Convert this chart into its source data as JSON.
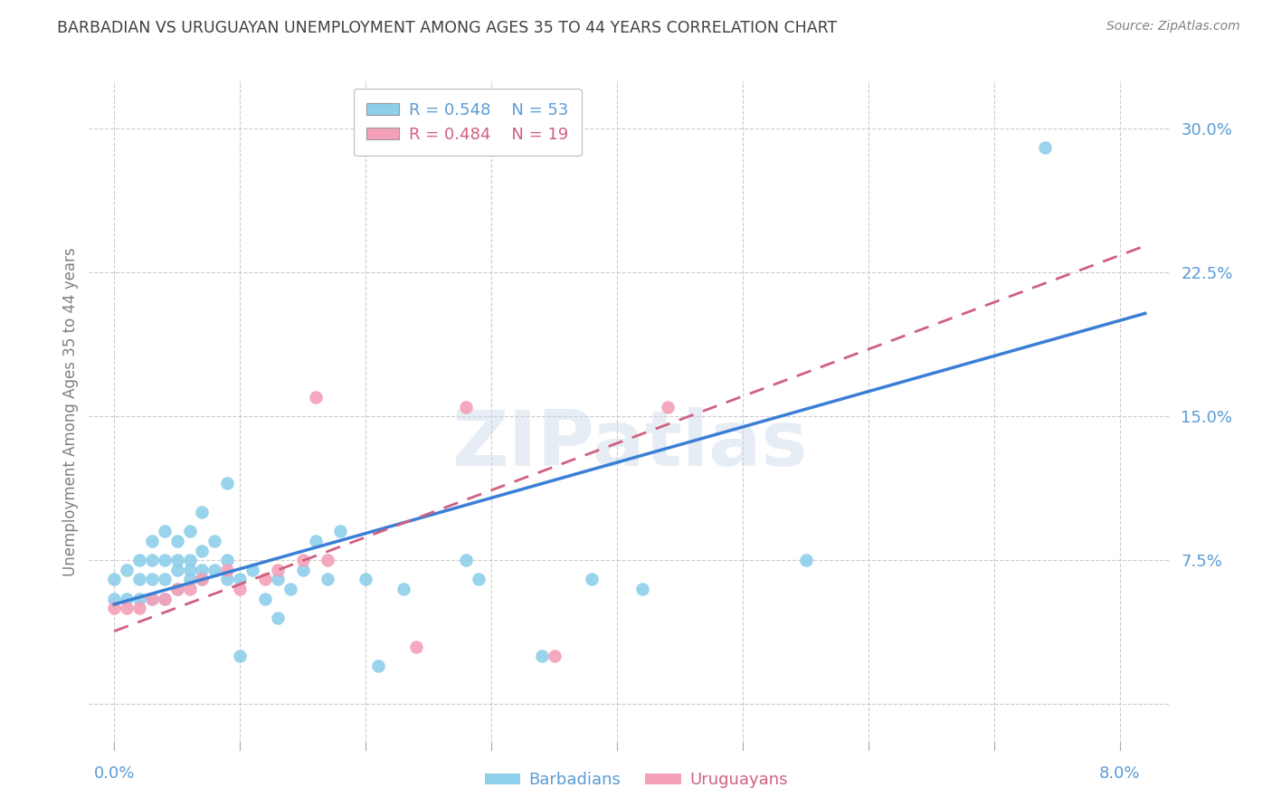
{
  "title": "BARBADIAN VS URUGUAYAN UNEMPLOYMENT AMONG AGES 35 TO 44 YEARS CORRELATION CHART",
  "source": "Source: ZipAtlas.com",
  "ylabel": "Unemployment Among Ages 35 to 44 years",
  "x_ticks": [
    0.0,
    0.01,
    0.02,
    0.03,
    0.04,
    0.05,
    0.06,
    0.07,
    0.08
  ],
  "y_ticks": [
    0.0,
    0.075,
    0.15,
    0.225,
    0.3
  ],
  "y_tick_labels_right": [
    "",
    "7.5%",
    "15.0%",
    "22.5%",
    "30.0%"
  ],
  "xlim": [
    -0.002,
    0.084
  ],
  "ylim": [
    -0.02,
    0.325
  ],
  "barbadian_color": "#8ecfea",
  "uruguayan_color": "#f4a0b8",
  "trendline_barbadian_color": "#3a7fd5",
  "trendline_uruguayan_color": "#d06080",
  "legend_R_barbadian": "R = 0.548",
  "legend_N_barbadian": "N = 53",
  "legend_R_uruguayan": "R = 0.484",
  "legend_N_uruguayan": "N = 19",
  "barbadian_x": [
    0.0,
    0.0,
    0.001,
    0.001,
    0.002,
    0.002,
    0.002,
    0.003,
    0.003,
    0.003,
    0.003,
    0.004,
    0.004,
    0.004,
    0.004,
    0.005,
    0.005,
    0.005,
    0.005,
    0.006,
    0.006,
    0.006,
    0.006,
    0.007,
    0.007,
    0.007,
    0.007,
    0.008,
    0.008,
    0.009,
    0.009,
    0.009,
    0.01,
    0.01,
    0.011,
    0.012,
    0.013,
    0.013,
    0.014,
    0.015,
    0.016,
    0.017,
    0.018,
    0.02,
    0.021,
    0.023,
    0.028,
    0.029,
    0.034,
    0.038,
    0.042,
    0.055,
    0.074
  ],
  "barbadian_y": [
    0.055,
    0.065,
    0.055,
    0.07,
    0.055,
    0.065,
    0.075,
    0.055,
    0.065,
    0.075,
    0.085,
    0.055,
    0.065,
    0.075,
    0.09,
    0.06,
    0.07,
    0.075,
    0.085,
    0.065,
    0.07,
    0.075,
    0.09,
    0.065,
    0.07,
    0.08,
    0.1,
    0.07,
    0.085,
    0.065,
    0.075,
    0.115,
    0.025,
    0.065,
    0.07,
    0.055,
    0.045,
    0.065,
    0.06,
    0.07,
    0.085,
    0.065,
    0.09,
    0.065,
    0.02,
    0.06,
    0.075,
    0.065,
    0.025,
    0.065,
    0.06,
    0.075,
    0.29
  ],
  "uruguayan_x": [
    0.0,
    0.001,
    0.002,
    0.003,
    0.004,
    0.005,
    0.006,
    0.007,
    0.009,
    0.01,
    0.012,
    0.013,
    0.015,
    0.016,
    0.017,
    0.024,
    0.028,
    0.035,
    0.044
  ],
  "uruguayan_y": [
    0.05,
    0.05,
    0.05,
    0.055,
    0.055,
    0.06,
    0.06,
    0.065,
    0.07,
    0.06,
    0.065,
    0.07,
    0.075,
    0.16,
    0.075,
    0.03,
    0.155,
    0.025,
    0.155
  ],
  "background_color": "#ffffff",
  "grid_color": "#cccccc",
  "axis_label_color": "#5b9bd5",
  "title_color": "#404040",
  "source_color": "#808080",
  "ylabel_color": "#808080",
  "watermark": "ZIPatlas",
  "trendline_barbadian_intercept": 0.052,
  "trendline_barbadian_slope": 1.85,
  "trendline_uruguayan_intercept": 0.038,
  "trendline_uruguayan_slope": 2.45
}
